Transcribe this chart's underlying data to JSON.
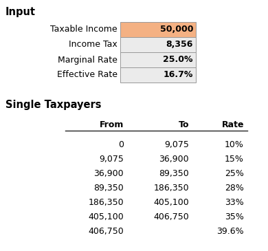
{
  "title_input": "Input",
  "title_taxpayers": "Single Taxpayers",
  "input_labels": [
    "Taxable Income",
    "Income Tax",
    "Marginal Rate",
    "Effective Rate"
  ],
  "input_values": [
    "50,000",
    "8,356",
    "25.0%",
    "16.7%"
  ],
  "input_bg_colors": [
    "#f4b183",
    "#ebebeb",
    "#ebebeb",
    "#ebebeb"
  ],
  "table_headers": [
    "From",
    "To",
    "Rate"
  ],
  "table_data": [
    [
      "0",
      "9,075",
      "10%"
    ],
    [
      "9,075",
      "36,900",
      "15%"
    ],
    [
      "36,900",
      "89,350",
      "25%"
    ],
    [
      "89,350",
      "186,350",
      "28%"
    ],
    [
      "186,350",
      "405,100",
      "33%"
    ],
    [
      "405,100",
      "406,750",
      "35%"
    ],
    [
      "406,750",
      "",
      "39.6%"
    ]
  ],
  "bg_color": "#ffffff",
  "text_color": "#000000",
  "border_color": "#999999",
  "header_line_color": "#222222",
  "fig_width": 3.9,
  "fig_height": 3.65,
  "dpi": 100
}
